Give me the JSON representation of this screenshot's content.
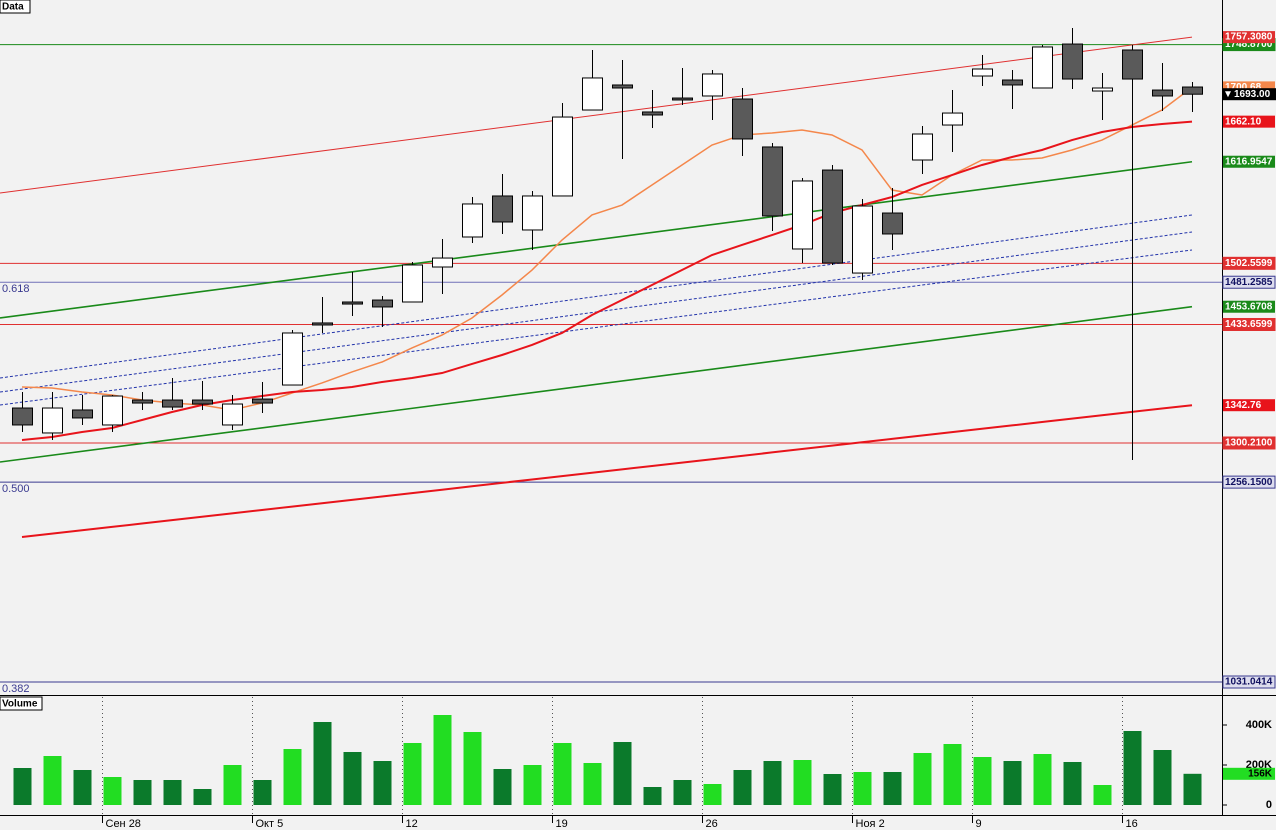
{
  "chart_data": [
    {
      "type": "candlestick",
      "title": "Data",
      "open": [
        1339.6,
        1311.5,
        1337.4,
        1320.5,
        1348.6,
        1348.6,
        1348.6,
        1320.5,
        1349.7,
        1365.5,
        1435.4,
        1459.0,
        1461.2,
        1459.0,
        1498.4,
        1532.2,
        1578.4,
        1540.1,
        1578.4,
        1675.2,
        1703.4,
        1673.0,
        1688.7,
        1691.0,
        1687.6,
        1633.6,
        1518.7,
        1607.6,
        1491.6,
        1559.2,
        1618.9,
        1658.3,
        1713.5,
        1709.0,
        1700.0,
        1749.5,
        1696.6,
        1742.8,
        1697.7,
        1701.1
      ],
      "high": [
        1357.6,
        1357.6,
        1354.3,
        1354.3,
        1357.6,
        1373.4,
        1370.0,
        1354.3,
        1368.9,
        1427.5,
        1464.6,
        1492.8,
        1465.8,
        1504.0,
        1530.0,
        1577.2,
        1603.1,
        1584.0,
        1683.1,
        1742.8,
        1731.5,
        1697.7,
        1722.5,
        1720.3,
        1700.0,
        1638.1,
        1598.6,
        1613.3,
        1575.0,
        1587.4,
        1657.2,
        1697.7,
        1737.2,
        1720.3,
        1748.4,
        1767.6,
        1716.9,
        1748.4,
        1728.2,
        1706.8
      ],
      "low": [
        1312.6,
        1303.6,
        1320.5,
        1312.6,
        1337.4,
        1337.4,
        1337.4,
        1314.8,
        1334.0,
        1365.5,
        1424.1,
        1443.2,
        1430.8,
        1459.0,
        1468.0,
        1525.5,
        1535.6,
        1517.6,
        1578.4,
        1675.2,
        1620.0,
        1655.0,
        1680.9,
        1664.0,
        1623.4,
        1539.0,
        1502.9,
        1500.7,
        1483.8,
        1517.6,
        1603.1,
        1627.9,
        1702.3,
        1676.3,
        1700.0,
        1698.9,
        1664.0,
        1281.1,
        1674.1,
        1673.0
      ],
      "close": [
        1320.5,
        1339.6,
        1328.4,
        1353.1,
        1345.2,
        1340.7,
        1344.1,
        1344.1,
        1345.2,
        1424.1,
        1433.1,
        1456.7,
        1453.4,
        1500.7,
        1508.5,
        1569.4,
        1549.1,
        1578.4,
        1667.3,
        1711.3,
        1700.0,
        1669.6,
        1686.5,
        1715.8,
        1642.6,
        1555.9,
        1595.3,
        1502.9,
        1567.1,
        1535.6,
        1648.2,
        1671.8,
        1721.4,
        1703.4,
        1746.2,
        1710.1,
        1700.0,
        1710.1,
        1691.0,
        1693.0
      ],
      "up_color": "#ffffff",
      "down_color": "#5a5a5a",
      "ylim": [
        1016.4,
        1799.1
      ],
      "moving_averages": [
        {
          "color": "#f4874b",
          "width": 1.5,
          "label": "1700.68",
          "values": [
            1363.3,
            1362.1,
            1357.6,
            1354.3,
            1348.6,
            1345.2,
            1343.0,
            1337.4,
            1345.2,
            1356.5,
            1367.8,
            1380.2,
            1391.4,
            1407.2,
            1421.8,
            1441.0,
            1466.9,
            1495.0,
            1528.8,
            1557.0,
            1568.2,
            1590.8,
            1613.3,
            1635.8,
            1647.1,
            1649.3,
            1652.7,
            1647.1,
            1630.2,
            1585.1,
            1579.5,
            1602.0,
            1618.9,
            1618.9,
            1621.2,
            1630.2,
            1641.4,
            1658.3,
            1675.2,
            1700.68
          ]
        },
        {
          "color": "#e8141b",
          "width": 2,
          "label": "1662.10",
          "values": [
            1303.6,
            1307.0,
            1312.6,
            1317.1,
            1326.1,
            1335.1,
            1343.0,
            1348.6,
            1353.1,
            1357.6,
            1359.9,
            1363.3,
            1368.9,
            1373.4,
            1379.0,
            1389.2,
            1399.3,
            1410.6,
            1424.1,
            1444.4,
            1461.2,
            1478.1,
            1495.0,
            1511.9,
            1523.2,
            1534.4,
            1545.7,
            1559.2,
            1568.2,
            1577.2,
            1590.8,
            1602.0,
            1613.3,
            1622.3,
            1630.2,
            1641.4,
            1650.4,
            1656.1,
            1659.5,
            1662.1
          ]
        },
        {
          "color": "#e8141b",
          "width": 2,
          "label": "1342.76",
          "values": [
            1194.3,
            1198.1,
            1201.9,
            1205.7,
            1209.5,
            1213.4,
            1217.2,
            1221.0,
            1224.8,
            1228.6,
            1232.4,
            1236.2,
            1240.0,
            1243.8,
            1247.6,
            1251.5,
            1255.3,
            1259.1,
            1262.9,
            1266.7,
            1270.5,
            1274.3,
            1278.1,
            1281.9,
            1285.7,
            1289.6,
            1293.4,
            1297.2,
            1301.0,
            1304.8,
            1308.6,
            1312.4,
            1316.2,
            1320.0,
            1323.8,
            1327.7,
            1331.5,
            1335.3,
            1339.1,
            1342.76
          ]
        }
      ],
      "trend_lines": [
        {
          "start": 1581.7,
          "end": 1757.308,
          "color": "#e03030",
          "label": "1757.3080"
        },
        {
          "start": 1441.0,
          "end": 1616.9547,
          "color": "#1a8a1a",
          "label": "1616.9547"
        },
        {
          "start": 1278.8,
          "end": 1453.6708,
          "color": "#1a8a1a",
          "label": "1453.6708"
        },
        {
          "start": 1373.4,
          "end": 1557.0,
          "color": "#2233aa",
          "dashed": true
        },
        {
          "start": 1357.6,
          "end": 1537.8,
          "color": "#2233aa",
          "dashed": true
        },
        {
          "start": 1343.0,
          "end": 1517.6,
          "color": "#2233aa",
          "dashed": true
        }
      ],
      "levels": [
        {
          "value": 1748.87,
          "label": "1748.8700",
          "color": "#1a8a1a"
        },
        {
          "value": 1502.5599,
          "label": "1502.5599",
          "color": "#e03030"
        },
        {
          "value": 1481.2585,
          "label": "1481.2585",
          "color": "#7070b8",
          "fib": "0.618"
        },
        {
          "value": 1433.6599,
          "label": "1433.6599",
          "color": "#e03030"
        },
        {
          "value": 1300.21,
          "label": "1300.2100",
          "color": "#e03030"
        },
        {
          "value": 1256.15,
          "label": "1256.1500",
          "color": "#3a3a90",
          "fib": "0.500"
        },
        {
          "value": 1031.0414,
          "label": "1031.0414",
          "color": "#3a3a90",
          "fib": "0.382"
        }
      ],
      "last_price": {
        "value": 1693.0,
        "label": "1693.00"
      }
    },
    {
      "type": "bar",
      "title": "Volume",
      "categories": [
        null,
        null,
        null,
        "Сен 28",
        null,
        null,
        null,
        null,
        "Окт 5",
        null,
        null,
        null,
        null,
        "12",
        null,
        null,
        null,
        null,
        "19",
        null,
        null,
        null,
        null,
        "26",
        null,
        null,
        null,
        null,
        "Ноя 2",
        null,
        null,
        null,
        "9",
        null,
        null,
        null,
        null,
        "16",
        null,
        null
      ],
      "values": [
        185000,
        245000,
        175000,
        140000,
        125000,
        125000,
        80000,
        200000,
        125000,
        280000,
        415000,
        265000,
        220000,
        310000,
        450000,
        365000,
        180000,
        200000,
        310000,
        210000,
        315000,
        90000,
        125000,
        105000,
        175000,
        220000,
        225000,
        155000,
        165000,
        165000,
        260000,
        305000,
        240000,
        220000,
        255000,
        215000,
        100000,
        370000,
        275000,
        156000
      ],
      "last_label": "156K",
      "up_color": "#22dd22",
      "down_color": "#0b7a2b",
      "ylim": [
        -50000,
        540000
      ],
      "yticks": [
        0,
        {
          "value": 200000,
          "label": "200K"
        },
        {
          "value": 400000,
          "label": "400K"
        }
      ],
      "grid": true
    }
  ]
}
